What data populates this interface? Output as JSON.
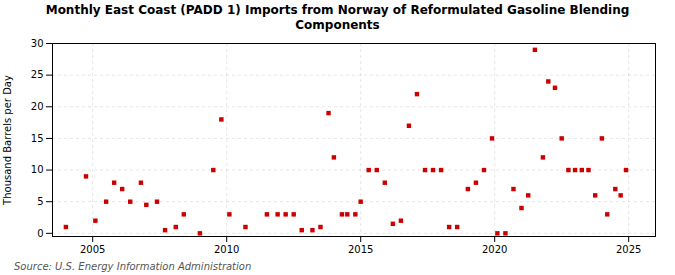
{
  "chart_data": {
    "type": "scatter",
    "title": "Monthly East Coast (PADD 1) Imports from Norway of Reformulated Gasoline Blending\nComponents",
    "ylabel": "Thousand Barrels per Day",
    "source": "Source: U.S. Energy Information Administration",
    "color": "#cc0000",
    "marker": "square",
    "grid": true,
    "xlim": [
      2003.5,
      2026.0
    ],
    "ylim": [
      -0.5,
      30
    ],
    "xticks": [
      2005,
      2010,
      2015,
      2020,
      2025
    ],
    "yticks": [
      0,
      5,
      10,
      15,
      20,
      25,
      30
    ],
    "x": [
      2004.0,
      2004.75,
      2005.1,
      2005.5,
      2005.8,
      2006.1,
      2006.4,
      2006.8,
      2007.0,
      2007.4,
      2007.7,
      2008.1,
      2008.4,
      2009.0,
      2009.5,
      2009.8,
      2010.1,
      2010.7,
      2011.5,
      2011.9,
      2012.2,
      2012.5,
      2012.8,
      2013.2,
      2013.5,
      2013.8,
      2014.0,
      2014.3,
      2014.5,
      2014.8,
      2015.0,
      2015.3,
      2015.6,
      2015.9,
      2016.2,
      2016.5,
      2016.8,
      2017.1,
      2017.4,
      2017.7,
      2018.0,
      2018.3,
      2018.6,
      2019.0,
      2019.3,
      2019.6,
      2019.9,
      2020.1,
      2020.4,
      2020.7,
      2021.0,
      2021.25,
      2021.5,
      2021.8,
      2022.0,
      2022.25,
      2022.5,
      2022.75,
      2023.0,
      2023.25,
      2023.5,
      2023.75,
      2024.0,
      2024.2,
      2024.5,
      2024.7,
      2024.9
    ],
    "values": [
      1.0,
      9.0,
      2.0,
      5.0,
      8.0,
      7.0,
      5.0,
      8.0,
      4.5,
      5.0,
      0.5,
      1.0,
      3.0,
      0.0,
      10.0,
      18.0,
      3.0,
      1.0,
      3.0,
      3.0,
      3.0,
      3.0,
      0.5,
      0.5,
      1.0,
      19.0,
      12.0,
      3.0,
      3.0,
      3.0,
      5.0,
      10.0,
      10.0,
      8.0,
      1.5,
      2.0,
      17.0,
      22.0,
      10.0,
      10.0,
      10.0,
      1.0,
      1.0,
      7.0,
      8.0,
      10.0,
      15.0,
      0.0,
      0.0,
      7.0,
      4.0,
      6.0,
      29.0,
      12.0,
      24.0,
      23.0,
      15.0,
      10.0,
      10.0,
      10.0,
      10.0,
      6.0,
      15.0,
      3.0,
      7.0,
      6.0,
      10.0
    ]
  }
}
